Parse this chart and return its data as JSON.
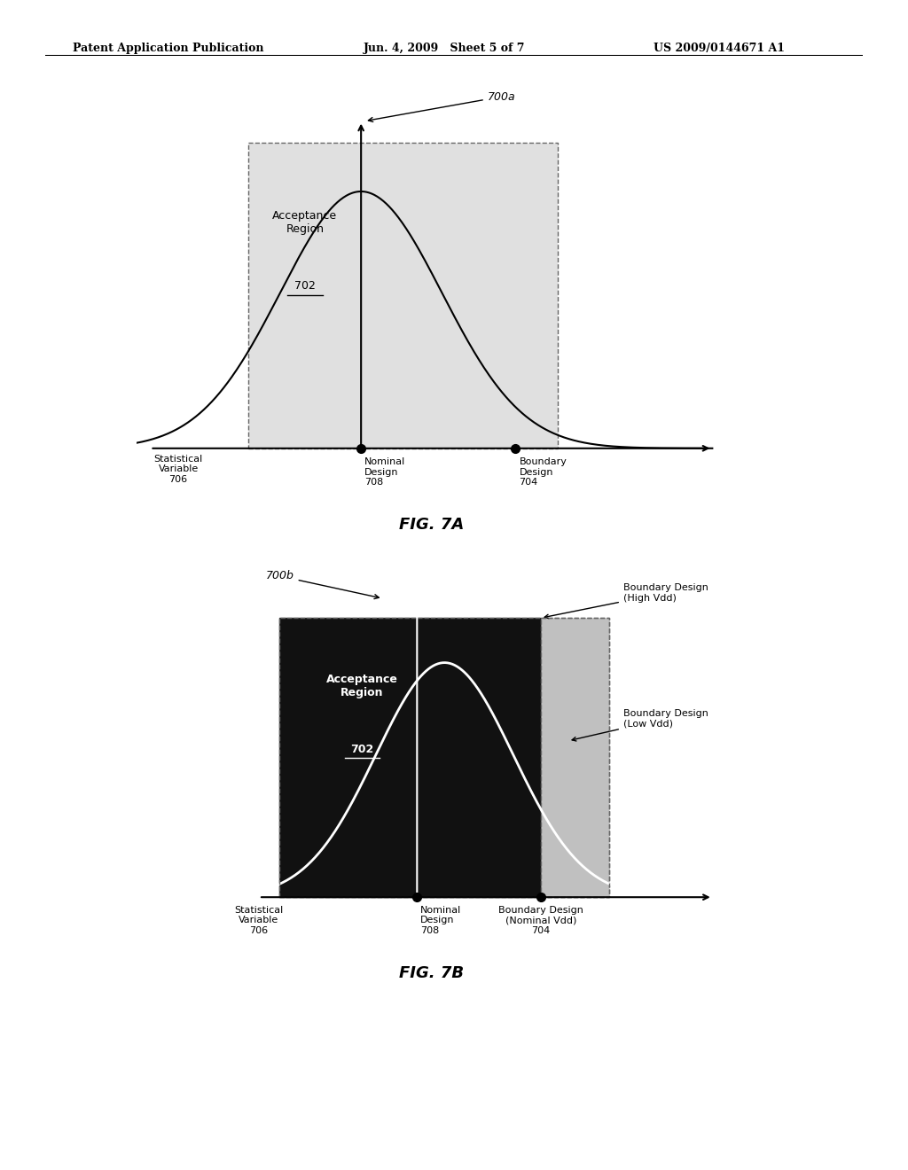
{
  "bg_color": "#ffffff",
  "header_left": "Patent Application Publication",
  "header_mid": "Jun. 4, 2009   Sheet 5 of 7",
  "header_right": "US 2009/0144671 A1",
  "fig7a": {
    "label": "700a",
    "acceptance_region_label": "Acceptance\nRegion",
    "acceptance_region_number": "702",
    "stat_var_label": "Statistical\nVariable\n706",
    "nominal_label": "Nominal\nDesign\n708",
    "boundary_label": "Boundary\nDesign\n704",
    "fig_label": "FIG. 7A",
    "box_bg": "#e0e0e0",
    "curve_color": "#000000"
  },
  "fig7b": {
    "label": "700b",
    "acceptance_region_label": "Acceptance\nRegion",
    "acceptance_region_number": "702",
    "stat_var_label": "Statistical\nVariable\n706",
    "nominal_label": "Nominal\nDesign\n708",
    "boundary_label_bottom": "Boundary Design\n(Nominal Vdd)\n704",
    "boundary_label_high": "Boundary Design\n(High Vdd)",
    "boundary_label_low": "Boundary Design\n(Low Vdd)",
    "fig_label": "FIG. 7B",
    "box_bg": "#111111",
    "curve_color": "#ffffff",
    "right_region_bg": "#c0c0c0"
  }
}
